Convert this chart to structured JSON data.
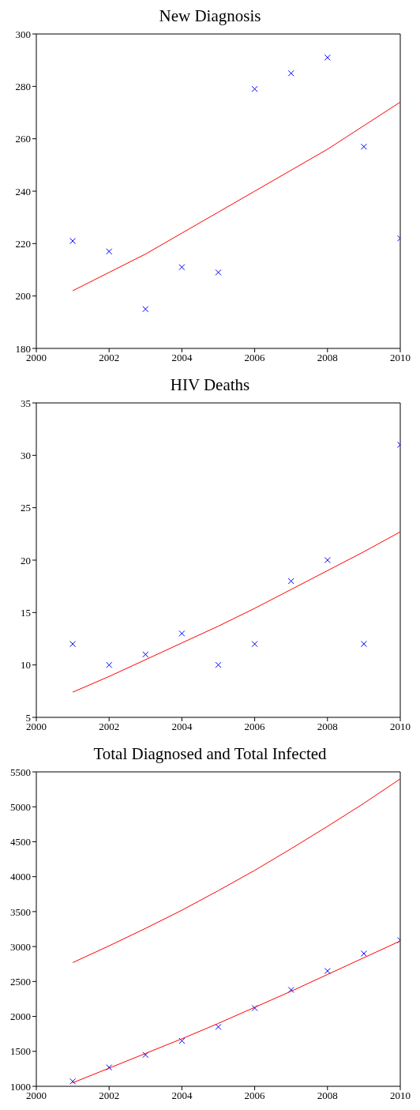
{
  "chart_data": [
    {
      "type": "scatter",
      "title": "New Diagnosis",
      "grid": false,
      "legend": false,
      "xlim": [
        2000,
        2010
      ],
      "xticks": [
        2000,
        2002,
        2004,
        2006,
        2008,
        2010
      ],
      "ylim": [
        180,
        300
      ],
      "yticks": [
        180,
        200,
        220,
        240,
        260,
        280,
        300
      ],
      "series": [
        {
          "marker": "cross",
          "color": "#0000ff",
          "x": [
            2001,
            2002,
            2003,
            2004,
            2005,
            2006,
            2007,
            2008,
            2009,
            2010
          ],
          "values": [
            221,
            217,
            195,
            211,
            209,
            279,
            285,
            291,
            257,
            222
          ]
        },
        {
          "type": "line",
          "marker": "none",
          "color": "#ff0000",
          "x": [
            2001,
            2002,
            2003,
            2004,
            2005,
            2006,
            2007,
            2008,
            2009,
            2010
          ],
          "values": [
            202,
            209,
            216,
            224,
            232,
            240,
            248,
            256,
            265,
            274
          ]
        }
      ]
    },
    {
      "type": "scatter",
      "title": "HIV Deaths",
      "grid": false,
      "legend": false,
      "xlim": [
        2000,
        2010
      ],
      "xticks": [
        2000,
        2002,
        2004,
        2006,
        2008,
        2010
      ],
      "ylim": [
        5,
        35
      ],
      "yticks": [
        5,
        10,
        15,
        20,
        25,
        30,
        35
      ],
      "series": [
        {
          "marker": "cross",
          "color": "#0000ff",
          "x": [
            2001,
            2002,
            2003,
            2004,
            2005,
            2006,
            2007,
            2008,
            2009,
            2010
          ],
          "values": [
            12,
            10,
            11,
            13,
            10,
            12,
            18,
            20,
            12,
            31
          ]
        },
        {
          "type": "line",
          "marker": "none",
          "color": "#ff0000",
          "x": [
            2001,
            2002,
            2003,
            2004,
            2005,
            2006,
            2007,
            2008,
            2009,
            2010
          ],
          "values": [
            7.4,
            8.9,
            10.5,
            12.1,
            13.7,
            15.4,
            17.2,
            19.0,
            20.8,
            22.7
          ]
        }
      ]
    },
    {
      "type": "scatter",
      "title": "Total Diagnosed and Total Infected",
      "grid": false,
      "legend": false,
      "xlim": [
        2000,
        2010
      ],
      "xticks": [
        2000,
        2002,
        2004,
        2006,
        2008,
        2010
      ],
      "ylim": [
        1000,
        5500
      ],
      "yticks": [
        1000,
        1500,
        2000,
        2500,
        3000,
        3500,
        4000,
        4500,
        5000,
        5500
      ],
      "series": [
        {
          "marker": "cross",
          "color": "#0000ff",
          "x": [
            2001,
            2002,
            2003,
            2004,
            2005,
            2006,
            2007,
            2008,
            2009,
            2010
          ],
          "values": [
            1070,
            1270,
            1450,
            1650,
            1850,
            2120,
            2380,
            2650,
            2900,
            3090
          ]
        },
        {
          "type": "line",
          "marker": "none",
          "color": "#ff0000",
          "x": [
            2001,
            2002,
            2003,
            2004,
            2005,
            2006,
            2007,
            2008,
            2009,
            2010
          ],
          "values": [
            1050,
            1260,
            1470,
            1680,
            1900,
            2130,
            2360,
            2600,
            2840,
            3080
          ]
        },
        {
          "type": "line",
          "marker": "none",
          "color": "#ff0000",
          "x": [
            2001,
            2002,
            2003,
            2004,
            2005,
            2006,
            2007,
            2008,
            2009,
            2010
          ],
          "values": [
            2770,
            3010,
            3260,
            3520,
            3800,
            4090,
            4400,
            4720,
            5050,
            5400
          ]
        }
      ]
    }
  ]
}
